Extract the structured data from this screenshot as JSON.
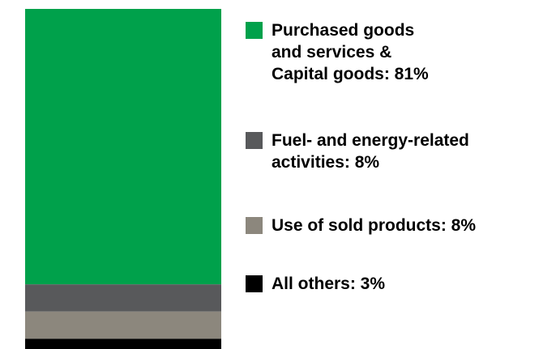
{
  "chart_data": {
    "type": "bar",
    "stacked": true,
    "orientation": "vertical",
    "title": "",
    "legend_position": "right",
    "grid": false,
    "categories": [
      ""
    ],
    "series": [
      {
        "name": "Purchased goods and services & Capital goods: 81%",
        "values": [
          81
        ],
        "color": "#00a14b"
      },
      {
        "name": "Fuel- and energy-related activities: 8%",
        "values": [
          8
        ],
        "color": "#58595b"
      },
      {
        "name": "Use of sold products: 8%",
        "values": [
          8
        ],
        "color": "#8c877d"
      },
      {
        "name": "All others: 3%",
        "values": [
          3
        ],
        "color": "#000000"
      }
    ],
    "ylim": [
      0,
      100
    ]
  },
  "legend": [
    {
      "lines": [
        "Purchased goods",
        "and services &",
        "Capital goods: 81%"
      ],
      "color": "#00a14b"
    },
    {
      "lines": [
        "Fuel- and energy-related",
        "activities: 8%"
      ],
      "color": "#58595b"
    },
    {
      "lines": [
        "Use of sold products: 8%"
      ],
      "color": "#8c877d"
    },
    {
      "lines": [
        "All others: 3%"
      ],
      "color": "#000000"
    }
  ]
}
